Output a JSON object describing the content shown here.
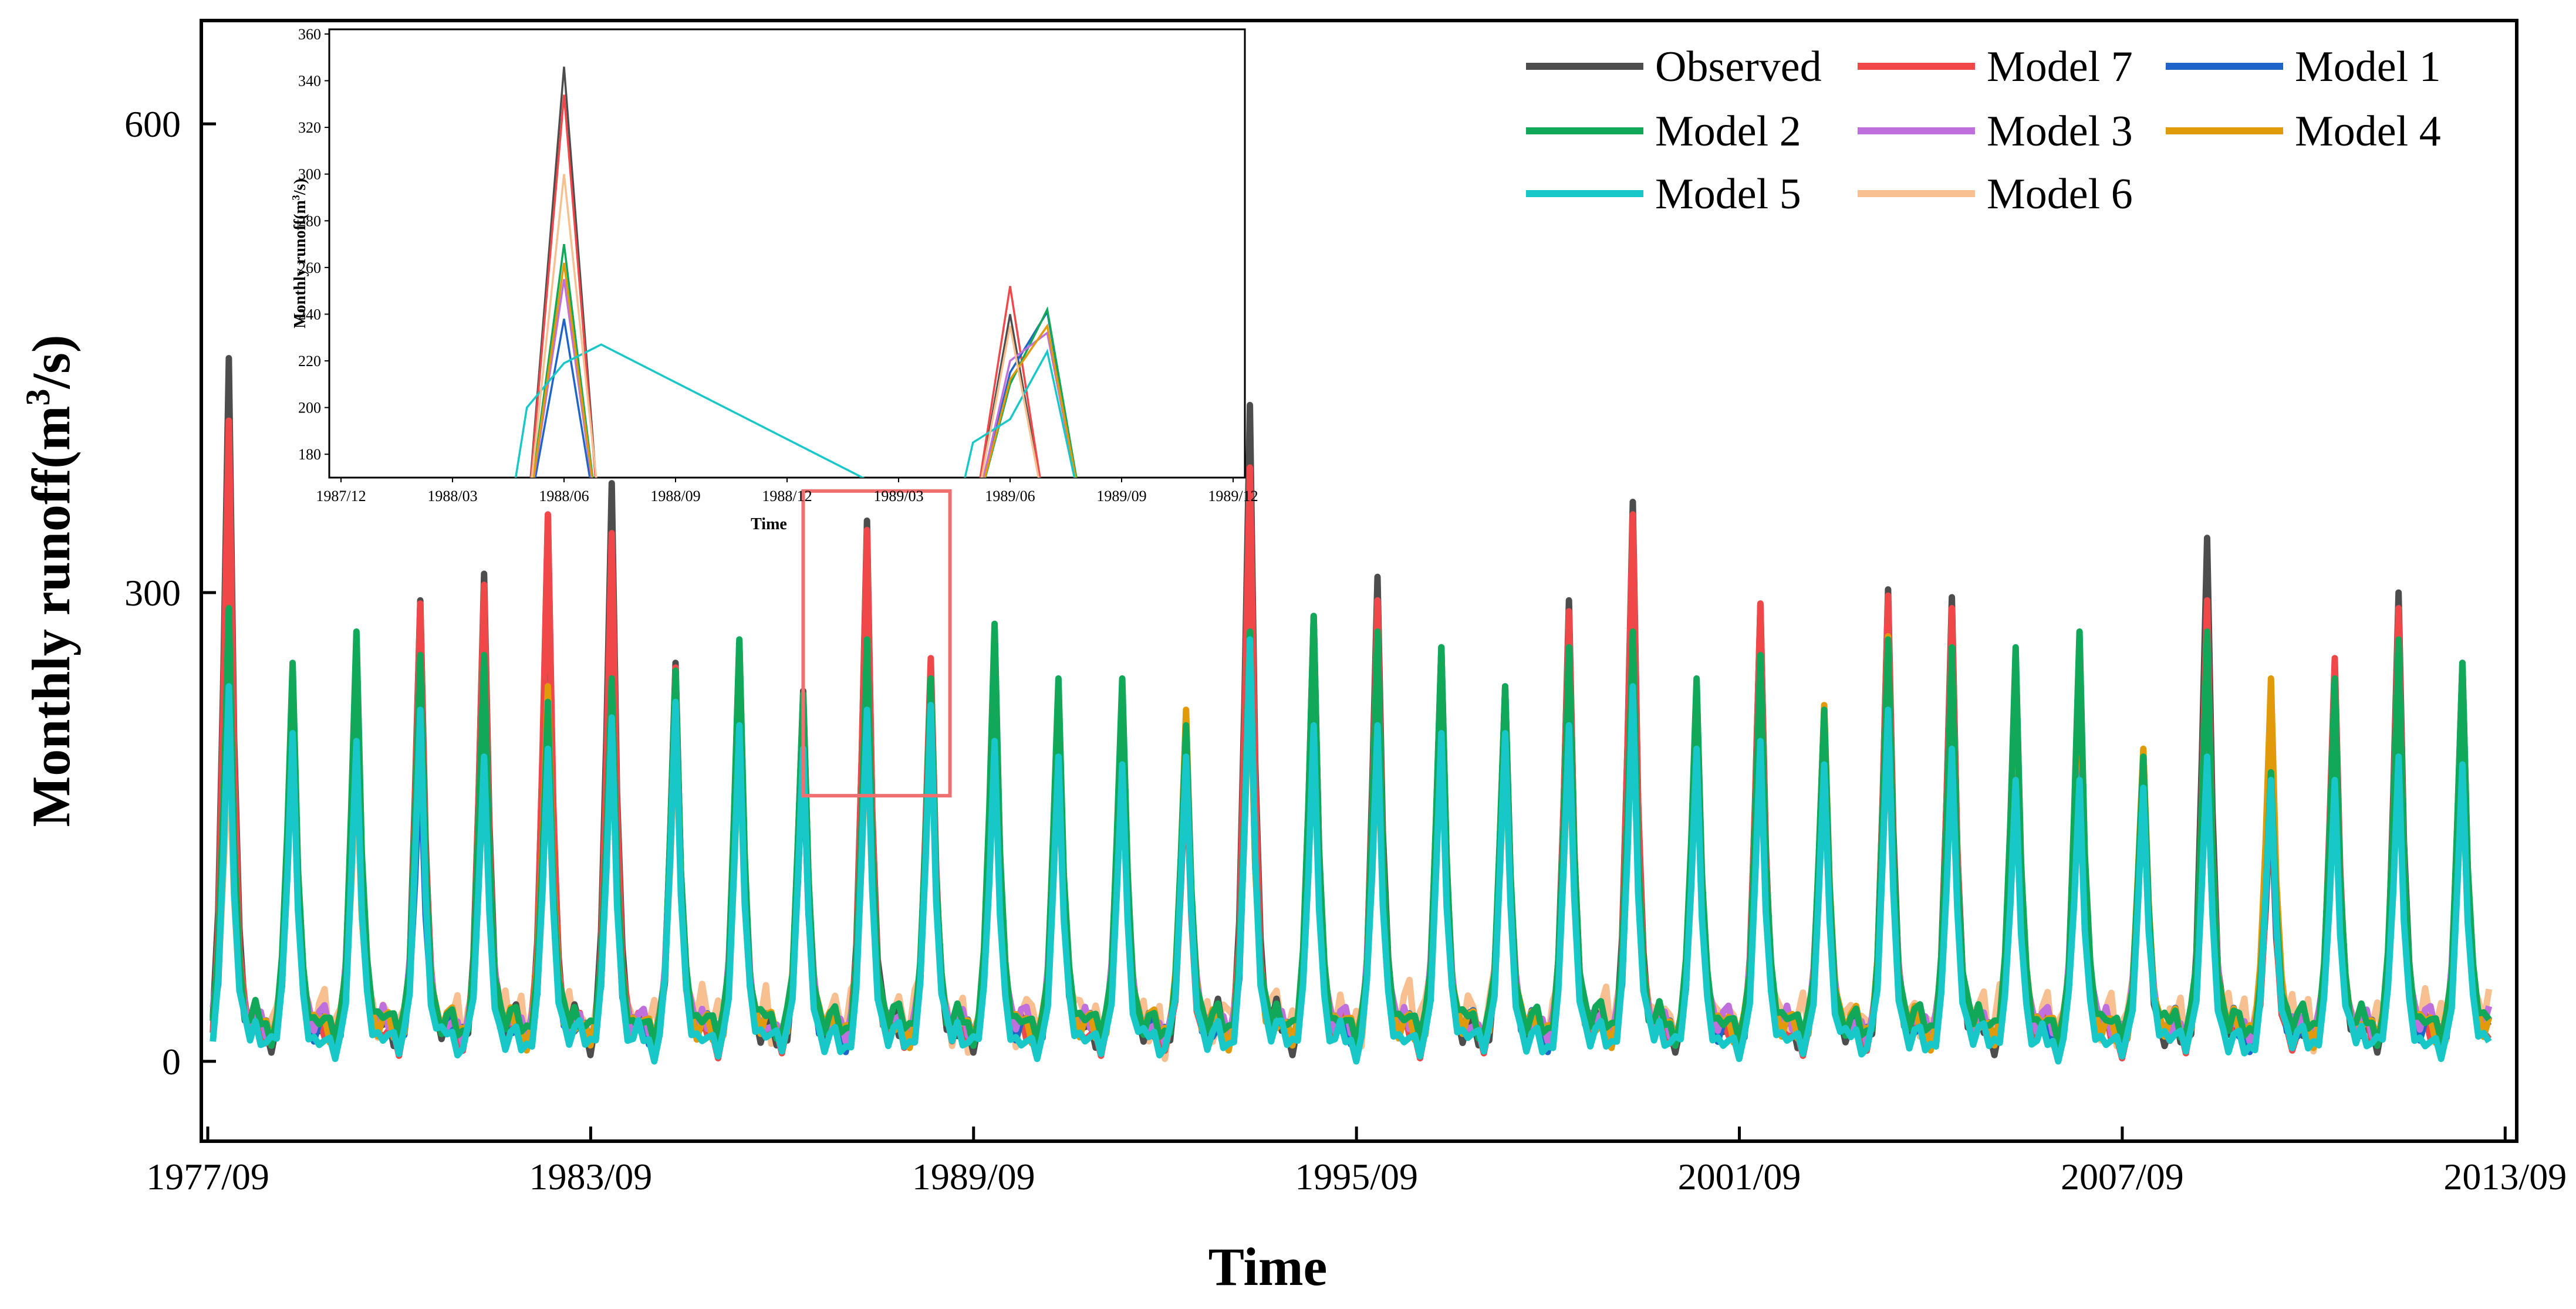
{
  "chart_data": [
    {
      "id": "main",
      "type": "line",
      "title": "",
      "xlabel": "Time",
      "ylabel_prefix": "Monthly runoff(m",
      "ylabel_sup": "3",
      "ylabel_suffix": "/s)",
      "x_range": [
        1977.67,
        2013.75
      ],
      "ylim": [
        -50,
        665
      ],
      "x_ticks": [
        {
          "value": 1977.67,
          "label": "1977/09"
        },
        {
          "value": 1983.67,
          "label": "1983/09"
        },
        {
          "value": 1989.67,
          "label": "1989/09"
        },
        {
          "value": 1995.67,
          "label": "1995/09"
        },
        {
          "value": 2001.67,
          "label": "2001/09"
        },
        {
          "value": 2007.67,
          "label": "2007/09"
        },
        {
          "value": 2013.67,
          "label": "2013/09"
        }
      ],
      "y_ticks": [
        {
          "value": 0,
          "label": "0"
        },
        {
          "value": 300,
          "label": "300"
        },
        {
          "value": 600,
          "label": "600"
        }
      ],
      "legend_position": "top-right",
      "highlight_box": {
        "x_from": 1987.0,
        "x_to": 1989.3,
        "y_from": 170,
        "y_to": 365
      },
      "peak_months": [
        1978.0,
        1979.0,
        1980.0,
        1981.0,
        1982.0,
        1983.0,
        1984.0,
        1985.0,
        1986.0,
        1987.0,
        1988.0,
        1989.0,
        1990.0,
        1991.0,
        1992.0,
        1993.0,
        1994.0,
        1995.0,
        1996.0,
        1997.0,
        1998.0,
        1999.0,
        2000.0,
        2001.0,
        2002.0,
        2003.0,
        2004.0,
        2005.0,
        2006.0,
        2007.0,
        2008.0,
        2009.0,
        2010.0,
        2011.0,
        2012.0,
        2013.0
      ],
      "series": [
        {
          "name": "Observed",
          "color": "#4d4d4d",
          "peaks": [
            450,
            250,
            270,
            295,
            312,
            348,
            370,
            255,
            268,
            237,
            346,
            248,
            275,
            240,
            240,
            200,
            420,
            285,
            310,
            265,
            240,
            295,
            358,
            240,
            292,
            225,
            302,
            297,
            258,
            272,
            198,
            335,
            170,
            250,
            300,
            255
          ],
          "base": 12
        },
        {
          "name": "Model 7",
          "color": "#f04848",
          "peaks": [
            410,
            245,
            270,
            293,
            305,
            350,
            338,
            252,
            262,
            232,
            340,
            258,
            270,
            238,
            238,
            190,
            380,
            280,
            295,
            262,
            235,
            288,
            350,
            235,
            293,
            220,
            298,
            290,
            255,
            270,
            195,
            295,
            168,
            258,
            290,
            248
          ],
          "base": 10
        },
        {
          "name": "Model 1",
          "color": "#1f64c8",
          "peaks": [
            240,
            230,
            260,
            200,
            240,
            210,
            225,
            245,
            255,
            200,
            240,
            240,
            255,
            230,
            230,
            200,
            265,
            260,
            250,
            255,
            235,
            260,
            240,
            225,
            240,
            210,
            255,
            240,
            245,
            255,
            180,
            265,
            175,
            235,
            250,
            240
          ],
          "base": 14
        },
        {
          "name": "Model 2",
          "color": "#12a85a",
          "peaks": [
            290,
            255,
            275,
            260,
            260,
            230,
            245,
            250,
            270,
            235,
            270,
            245,
            280,
            245,
            245,
            215,
            275,
            285,
            275,
            265,
            240,
            265,
            275,
            245,
            260,
            225,
            270,
            265,
            265,
            275,
            195,
            275,
            185,
            245,
            270,
            255
          ],
          "base": 18
        },
        {
          "name": "Model 3",
          "color": "#bf70dc",
          "peaks": [
            285,
            240,
            262,
            255,
            255,
            225,
            240,
            245,
            262,
            230,
            262,
            240,
            272,
            240,
            240,
            212,
            270,
            278,
            268,
            260,
            235,
            260,
            270,
            240,
            255,
            222,
            265,
            260,
            260,
            268,
            195,
            270,
            182,
            240,
            265,
            250
          ],
          "base": 16
        },
        {
          "name": "Model 4",
          "color": "#e09a0a",
          "peaks": [
            280,
            248,
            258,
            250,
            252,
            240,
            235,
            240,
            258,
            225,
            258,
            238,
            262,
            235,
            235,
            225,
            262,
            272,
            262,
            258,
            232,
            258,
            268,
            232,
            252,
            228,
            272,
            255,
            258,
            262,
            200,
            268,
            245,
            238,
            262,
            245
          ],
          "base": 15
        },
        {
          "name": "Model 5",
          "color": "#18c8c8",
          "peaks": [
            240,
            210,
            205,
            225,
            195,
            200,
            220,
            230,
            215,
            200,
            225,
            228,
            205,
            195,
            190,
            195,
            270,
            215,
            215,
            210,
            210,
            215,
            240,
            200,
            205,
            190,
            225,
            200,
            180,
            180,
            175,
            195,
            180,
            180,
            195,
            190
          ],
          "base": 8
        },
        {
          "name": "Model 6",
          "color": "#f8c090",
          "peaks": [
            200,
            200,
            185,
            200,
            190,
            190,
            210,
            215,
            205,
            195,
            215,
            215,
            200,
            190,
            190,
            190,
            250,
            205,
            205,
            205,
            200,
            205,
            230,
            195,
            200,
            188,
            220,
            195,
            178,
            178,
            172,
            190,
            176,
            176,
            190,
            185
          ],
          "base": 22
        }
      ]
    },
    {
      "id": "inset",
      "type": "line",
      "title": "",
      "xlabel": "Time",
      "ylabel_prefix": "Monthly runoff(m",
      "ylabel_sup": "3",
      "ylabel_suffix": "/s)",
      "x_range": [
        0,
        24
      ],
      "ylim": [
        170,
        362
      ],
      "x_ticks": [
        {
          "value": 0,
          "label": "1987/12"
        },
        {
          "value": 3,
          "label": "1988/03"
        },
        {
          "value": 6,
          "label": "1988/06"
        },
        {
          "value": 9,
          "label": "1988/09"
        },
        {
          "value": 12,
          "label": "1988/12"
        },
        {
          "value": 15,
          "label": "1989/03"
        },
        {
          "value": 18,
          "label": "1989/06"
        },
        {
          "value": 21,
          "label": "1989/09"
        },
        {
          "value": 24,
          "label": "1989/12"
        }
      ],
      "y_ticks": [
        {
          "value": 180,
          "label": "180"
        },
        {
          "value": 200,
          "label": "200"
        },
        {
          "value": 220,
          "label": "220"
        },
        {
          "value": 240,
          "label": "240"
        },
        {
          "value": 260,
          "label": "260"
        },
        {
          "value": 280,
          "label": "280"
        },
        {
          "value": 300,
          "label": "300"
        },
        {
          "value": 320,
          "label": "320"
        },
        {
          "value": 340,
          "label": "340"
        },
        {
          "value": 360,
          "label": "360"
        }
      ],
      "series": [
        {
          "name": "Observed",
          "color": "#4d4d4d",
          "x": [
            5,
            6,
            7,
            17,
            18,
            19
          ],
          "y": [
            150,
            346,
            140,
            150,
            240,
            150
          ]
        },
        {
          "name": "Model 7",
          "color": "#f04848",
          "x": [
            5,
            6,
            7,
            17,
            18,
            19
          ],
          "y": [
            150,
            334,
            140,
            150,
            252,
            150
          ]
        },
        {
          "name": "Model 1",
          "color": "#1f64c8",
          "x": [
            5,
            6,
            7,
            17,
            18,
            19,
            20
          ],
          "y": [
            150,
            238,
            140,
            150,
            215,
            241,
            150
          ]
        },
        {
          "name": "Model 2",
          "color": "#12a85a",
          "x": [
            5,
            6,
            7,
            17,
            18,
            19,
            20
          ],
          "y": [
            150,
            270,
            140,
            150,
            210,
            242,
            150
          ]
        },
        {
          "name": "Model 3",
          "color": "#bf70dc",
          "x": [
            5,
            6,
            7,
            17,
            18,
            19,
            20
          ],
          "y": [
            150,
            255,
            140,
            150,
            220,
            232,
            150
          ]
        },
        {
          "name": "Model 4",
          "color": "#e09a0a",
          "x": [
            5,
            6,
            7,
            17,
            18,
            19,
            20
          ],
          "y": [
            150,
            262,
            140,
            150,
            212,
            235,
            150
          ]
        },
        {
          "name": "Model 5",
          "color": "#18c8c8",
          "x": [
            4.5,
            5,
            6,
            7,
            16.5,
            17,
            18,
            19,
            20
          ],
          "y": [
            150,
            200,
            219,
            227,
            150,
            185,
            195,
            224,
            150
          ]
        },
        {
          "name": "Model 6",
          "color": "#f8c090",
          "x": [
            5,
            6,
            7,
            17,
            18,
            19
          ],
          "y": [
            150,
            300,
            150,
            150,
            235,
            150
          ]
        }
      ]
    }
  ]
}
